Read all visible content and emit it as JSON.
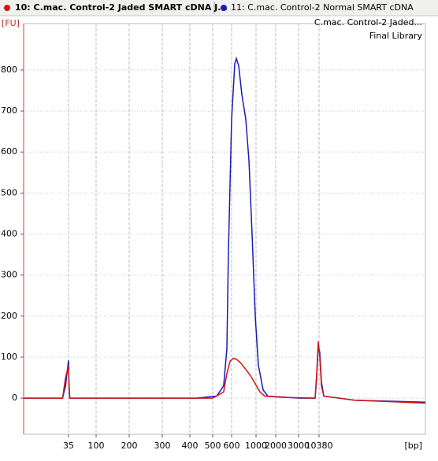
{
  "chart_data": {
    "type": "line",
    "y_label": "[FU]",
    "x_label": "[bp]",
    "annotations": [
      "C.mac. Control-2 Jaded...",
      "Final Library"
    ],
    "xlim": [
      20,
      20000
    ],
    "xticks": [
      35,
      100,
      200,
      300,
      400,
      500,
      600,
      1000,
      2000,
      3000,
      10380
    ],
    "ylim": [
      -88,
      913
    ],
    "yticks": [
      0,
      100,
      200,
      300,
      400,
      500,
      600,
      700,
      800
    ],
    "grid": true,
    "series": [
      {
        "name": "11: C.mac. Control-2 Normal SMART cDNA",
        "color": "#1a1ab4",
        "x": [
          20,
          33,
          34,
          35,
          36,
          38,
          430,
          521,
          558,
          575,
          583,
          600,
          652,
          677,
          716,
          768,
          832,
          884,
          935,
          987,
          1120,
          1360,
          1600,
          3284,
          8961,
          9529,
          10096,
          10451,
          10594,
          10807,
          13587,
          20000
        ],
        "values": [
          0,
          0,
          30,
          92,
          40,
          0,
          0,
          5,
          30,
          120,
          350,
          680,
          815,
          828,
          810,
          740,
          680,
          580,
          400,
          200,
          80,
          20,
          5,
          0,
          0,
          50,
          130,
          110,
          40,
          5,
          -5,
          -10
        ]
      },
      {
        "name": "10: C.mac. Control-2 Jaded SMART cDNA J...",
        "color": "#d21414",
        "x": [
          20,
          33,
          34,
          35,
          36,
          38,
          500,
          558,
          575,
          592,
          626,
          677,
          755,
          832,
          910,
          987,
          1200,
          1440,
          2345,
          8961,
          9529,
          10096,
          10451,
          10594,
          10807,
          13587,
          20000
        ],
        "values": [
          0,
          0,
          50,
          80,
          30,
          0,
          0,
          15,
          60,
          90,
          97,
          95,
          85,
          70,
          55,
          35,
          15,
          5,
          2,
          0,
          60,
          138,
          100,
          30,
          5,
          -5,
          -12
        ]
      }
    ]
  }
}
